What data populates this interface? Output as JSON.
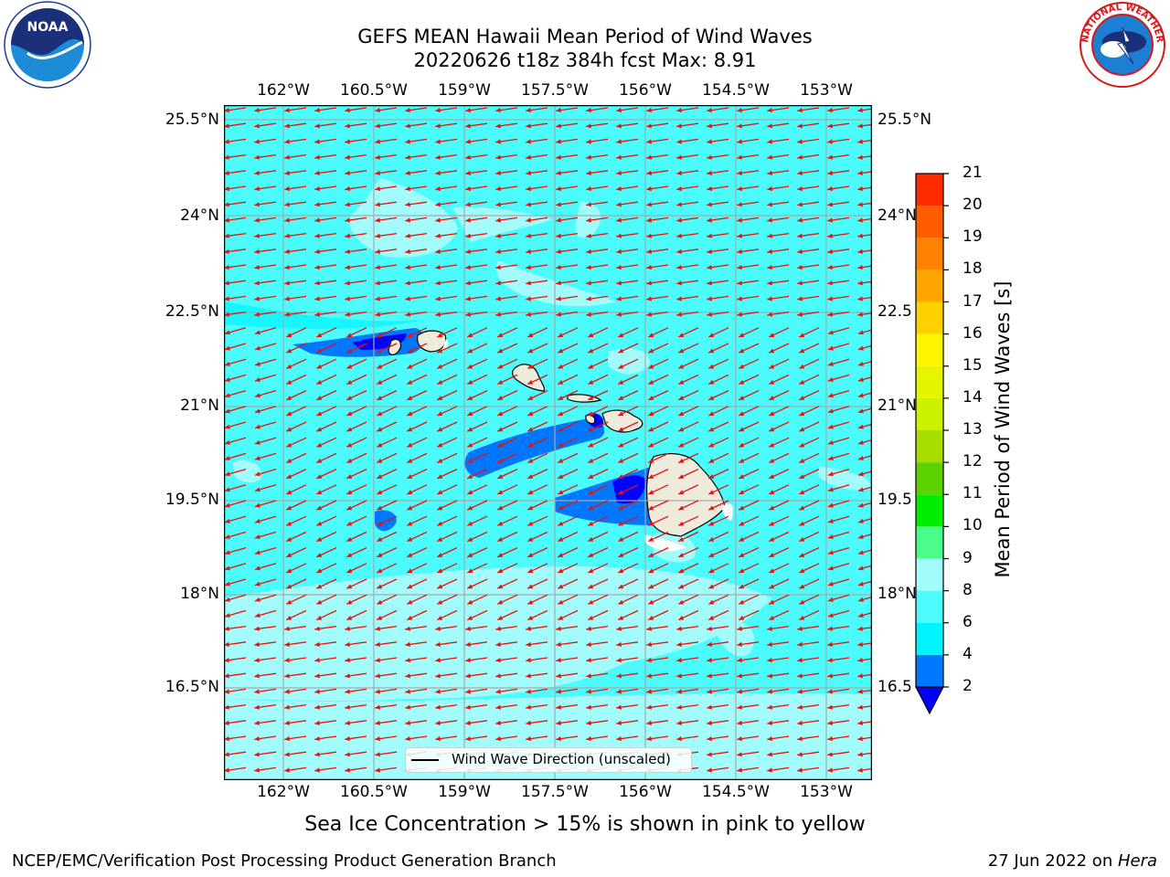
{
  "header": {
    "title_line1": "GEFS MEAN Hawaii Mean Period of Wind Waves",
    "title_line2": "20220626 t18z 384h fcst   Max: 8.91"
  },
  "logos": {
    "noaa_text": "NOAA",
    "nws_text": "NATIONAL WEATHER SERVICE"
  },
  "map": {
    "lon_labels": [
      "162°W",
      "160.5°W",
      "159°W",
      "157.5°W",
      "156°W",
      "154.5°W",
      "153°W"
    ],
    "lat_labels_left": [
      "25.5°N",
      "24°N",
      "22.5°N",
      "21°N",
      "19.5°N",
      "18°N",
      "16.5°N"
    ],
    "lat_labels_right": [
      "25.5°N",
      "24°N",
      "22.5",
      "21°N",
      "19.5",
      "18°N",
      "16.5"
    ],
    "wind_direction": "from east-northeast",
    "arrow_color": "#e8120c",
    "ocean_color": "#4cfcfc"
  },
  "legend": {
    "label": "Wind Wave Direction (unscaled)"
  },
  "colorbar": {
    "label": "Mean Period of Wind Waves [s]",
    "ticks": [
      "2",
      "4",
      "6",
      "8",
      "9",
      "10",
      "11",
      "12",
      "13",
      "14",
      "15",
      "16",
      "17",
      "18",
      "19",
      "20",
      "21"
    ],
    "colors": [
      "#0077ff",
      "#00f4ff",
      "#4cfcfc",
      "#a2fcfc",
      "#4cfc8a",
      "#00ef00",
      "#5cd200",
      "#a8dd00",
      "#ccf200",
      "#e5f500",
      "#fff600",
      "#ffd100",
      "#ffa500",
      "#ff8300",
      "#ff5c00",
      "#ff2b00",
      "#ff0000"
    ],
    "under_color": "#0000ff"
  },
  "footer": {
    "subtitle": "Sea Ice Concentration > 15% is shown in pink to yellow",
    "left": "NCEP/EMC/Verification Post Processing Product Generation Branch",
    "right_date": "27 Jun 2022 on ",
    "right_host": "Hera"
  }
}
